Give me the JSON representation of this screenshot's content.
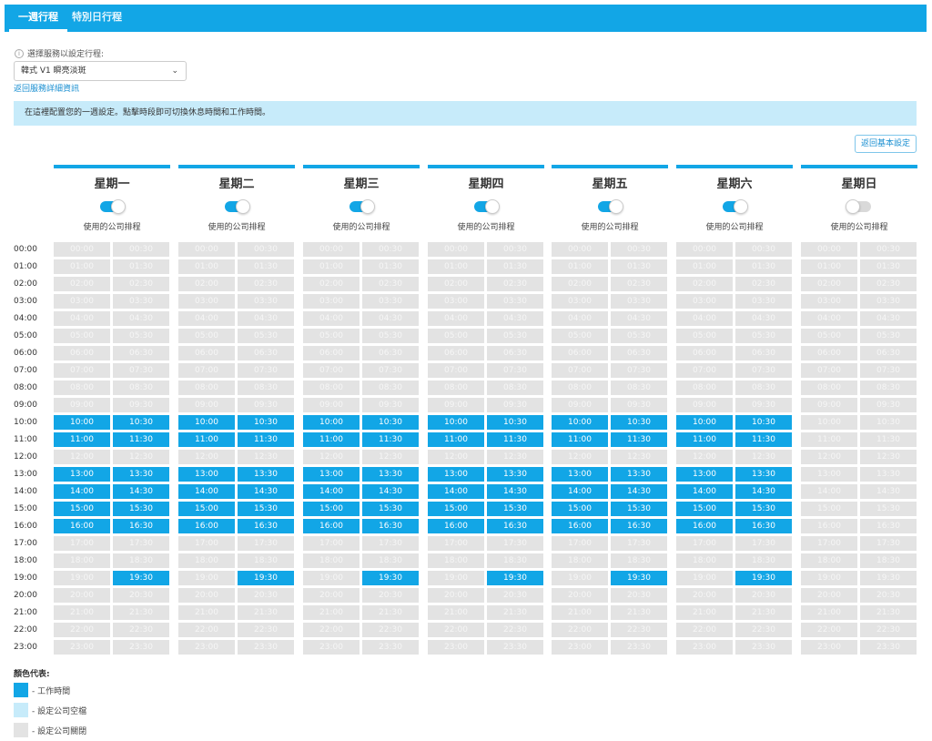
{
  "tabs": [
    {
      "label": "一週行程",
      "active": true
    },
    {
      "label": "特別日行程",
      "active": false
    }
  ],
  "service": {
    "label": "選擇服務以設定行程:",
    "selected": "韓式 V1 瞬亮淡斑",
    "back_link": "返回服務詳細資訊"
  },
  "banner": "在這裡配置您的一週設定。點擊時段即可切換休息時間和工作時間。",
  "basic_button": "返回基本設定",
  "colors": {
    "accent": "#12a6e6",
    "work": "#12a6e6",
    "company_free": "#c7ebfa",
    "company_closed": "#e3e3e3"
  },
  "days": [
    {
      "name": "星期一",
      "toggle_on": true,
      "toggle_label": "使用的公司排程"
    },
    {
      "name": "星期二",
      "toggle_on": true,
      "toggle_label": "使用的公司排程"
    },
    {
      "name": "星期三",
      "toggle_on": true,
      "toggle_label": "使用的公司排程"
    },
    {
      "name": "星期四",
      "toggle_on": true,
      "toggle_label": "使用的公司排程"
    },
    {
      "name": "星期五",
      "toggle_on": true,
      "toggle_label": "使用的公司排程"
    },
    {
      "name": "星期六",
      "toggle_on": true,
      "toggle_label": "使用的公司排程"
    },
    {
      "name": "星期日",
      "toggle_on": false,
      "toggle_label": "使用的公司排程"
    }
  ],
  "hours": [
    "00:00",
    "01:00",
    "02:00",
    "03:00",
    "04:00",
    "05:00",
    "06:00",
    "07:00",
    "08:00",
    "09:00",
    "10:00",
    "11:00",
    "12:00",
    "13:00",
    "14:00",
    "15:00",
    "16:00",
    "17:00",
    "18:00",
    "19:00",
    "20:00",
    "21:00",
    "22:00",
    "23:00"
  ],
  "work_slots_weekdays": [
    "10:00",
    "10:30",
    "11:00",
    "11:30",
    "13:00",
    "13:30",
    "14:00",
    "14:30",
    "15:00",
    "15:30",
    "16:00",
    "16:30",
    "19:30"
  ],
  "work_slots_sunday": [],
  "legend": {
    "title": "顏色代表:",
    "items": [
      {
        "label": "- 工作時間",
        "color": "#12a6e6"
      },
      {
        "label": "- 設定公司空檔",
        "color": "#c7ebfa"
      },
      {
        "label": "- 設定公司關閉",
        "color": "#e3e3e3"
      }
    ]
  }
}
